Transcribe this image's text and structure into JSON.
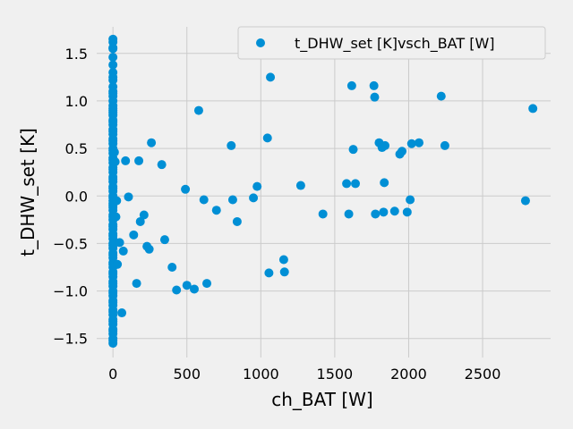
{
  "chart_data": {
    "type": "scatter",
    "xlabel": "ch_BAT [W]",
    "ylabel": "t_DHW_set [K]",
    "xlim": [
      -110,
      2960
    ],
    "ylim": [
      -1.7,
      1.78
    ],
    "xticks": [
      0,
      500,
      1000,
      1500,
      2000,
      2500
    ],
    "xtick_labels": [
      "0",
      "500",
      "1000",
      "1500",
      "2000",
      "2500"
    ],
    "yticks": [
      -1.5,
      -1.0,
      -0.5,
      0.0,
      0.5,
      1.0,
      1.5
    ],
    "ytick_labels": [
      "−1.5",
      "−1.0",
      "−0.5",
      "0.0",
      "0.5",
      "1.0",
      "1.5"
    ],
    "grid": true,
    "legend_position": "top-right",
    "colors": {
      "point": "#008fd5",
      "background": "#f0f0f0",
      "grid": "#cbcbcb"
    },
    "series": [
      {
        "name": "t_DHW_set [K]vsch_BAT [W]",
        "x": [
          0,
          0,
          0,
          0,
          0,
          0,
          0,
          0,
          0,
          0,
          0,
          0,
          0,
          0,
          0,
          0,
          0,
          0,
          0,
          0,
          0,
          0,
          0,
          0,
          0,
          0,
          0,
          0,
          0,
          0,
          0,
          0,
          0,
          0,
          0,
          0,
          0,
          0,
          0,
          0,
          0,
          0,
          0,
          0,
          0,
          0,
          0,
          0,
          0,
          0,
          0,
          0,
          0,
          0,
          0,
          0,
          0,
          0,
          0,
          0,
          0,
          0,
          0,
          0,
          0,
          0,
          0,
          0,
          0,
          0,
          0,
          0,
          0,
          0,
          0,
          0,
          0,
          0,
          0,
          0,
          0,
          0,
          0,
          0,
          0,
          0,
          0,
          0,
          0,
          0,
          0,
          0,
          10,
          20,
          30,
          25,
          15,
          45,
          60,
          70,
          85,
          105,
          140,
          160,
          175,
          185,
          210,
          230,
          245,
          260,
          330,
          350,
          400,
          430,
          490,
          500,
          550,
          580,
          615,
          635,
          700,
          800,
          810,
          840,
          950,
          975,
          1045,
          1055,
          1065,
          1155,
          1160,
          1270,
          1420,
          1580,
          1595,
          1615,
          1625,
          1640,
          1765,
          1770,
          1775,
          1800,
          1820,
          1830,
          1835,
          1840,
          1905,
          1940,
          1955,
          1990,
          2010,
          2020,
          2070,
          2220,
          2245,
          2790,
          2840
        ],
        "y": [
          1.65,
          1.56,
          1.55,
          1.46,
          1.3,
          1.25,
          1.22,
          1.15,
          1.1,
          1.05,
          1.0,
          0.95,
          0.9,
          0.85,
          0.8,
          0.75,
          0.7,
          0.65,
          0.6,
          0.55,
          0.5,
          0.45,
          0.4,
          0.35,
          0.3,
          0.25,
          0.2,
          0.15,
          0.1,
          0.05,
          0.0,
          -0.05,
          -0.1,
          -0.15,
          -0.2,
          -0.25,
          -0.3,
          -0.35,
          -0.4,
          -0.45,
          -0.5,
          -0.55,
          -0.6,
          -0.65,
          -0.7,
          -0.75,
          -0.8,
          -0.85,
          -0.9,
          -0.95,
          -1.0,
          -1.05,
          -1.1,
          -1.15,
          -1.2,
          -1.25,
          -1.3,
          -1.35,
          -1.4,
          -1.42,
          -1.52,
          -1.55,
          1.62,
          1.38,
          1.08,
          0.88,
          0.78,
          0.68,
          0.58,
          0.48,
          0.38,
          0.28,
          0.18,
          0.08,
          -0.02,
          -0.12,
          -0.22,
          -0.32,
          -0.42,
          -0.52,
          -0.62,
          -0.72,
          -0.82,
          -0.92,
          -1.02,
          -1.12,
          -1.22,
          -1.32,
          -1.45,
          -1.5,
          0.92,
          -0.08,
          0.46,
          -0.22,
          -0.72,
          -0.05,
          0.36,
          -0.49,
          -1.23,
          -0.58,
          0.37,
          -0.01,
          -0.41,
          -0.92,
          0.37,
          -0.27,
          -0.2,
          -0.53,
          -0.56,
          0.56,
          0.33,
          -0.46,
          -0.75,
          -0.99,
          0.07,
          -0.94,
          -0.98,
          0.9,
          -0.04,
          -0.92,
          -0.15,
          0.53,
          -0.04,
          -0.27,
          -0.02,
          0.1,
          0.61,
          -0.81,
          1.25,
          -0.67,
          -0.8,
          0.11,
          -0.19,
          0.13,
          -0.19,
          1.16,
          0.49,
          0.13,
          1.16,
          1.04,
          -0.19,
          0.56,
          0.51,
          -0.17,
          0.14,
          0.53,
          -0.16,
          0.44,
          0.47,
          -0.17,
          -0.04,
          0.55,
          0.56,
          1.05,
          0.53,
          -0.05,
          0.92
        ]
      }
    ]
  }
}
